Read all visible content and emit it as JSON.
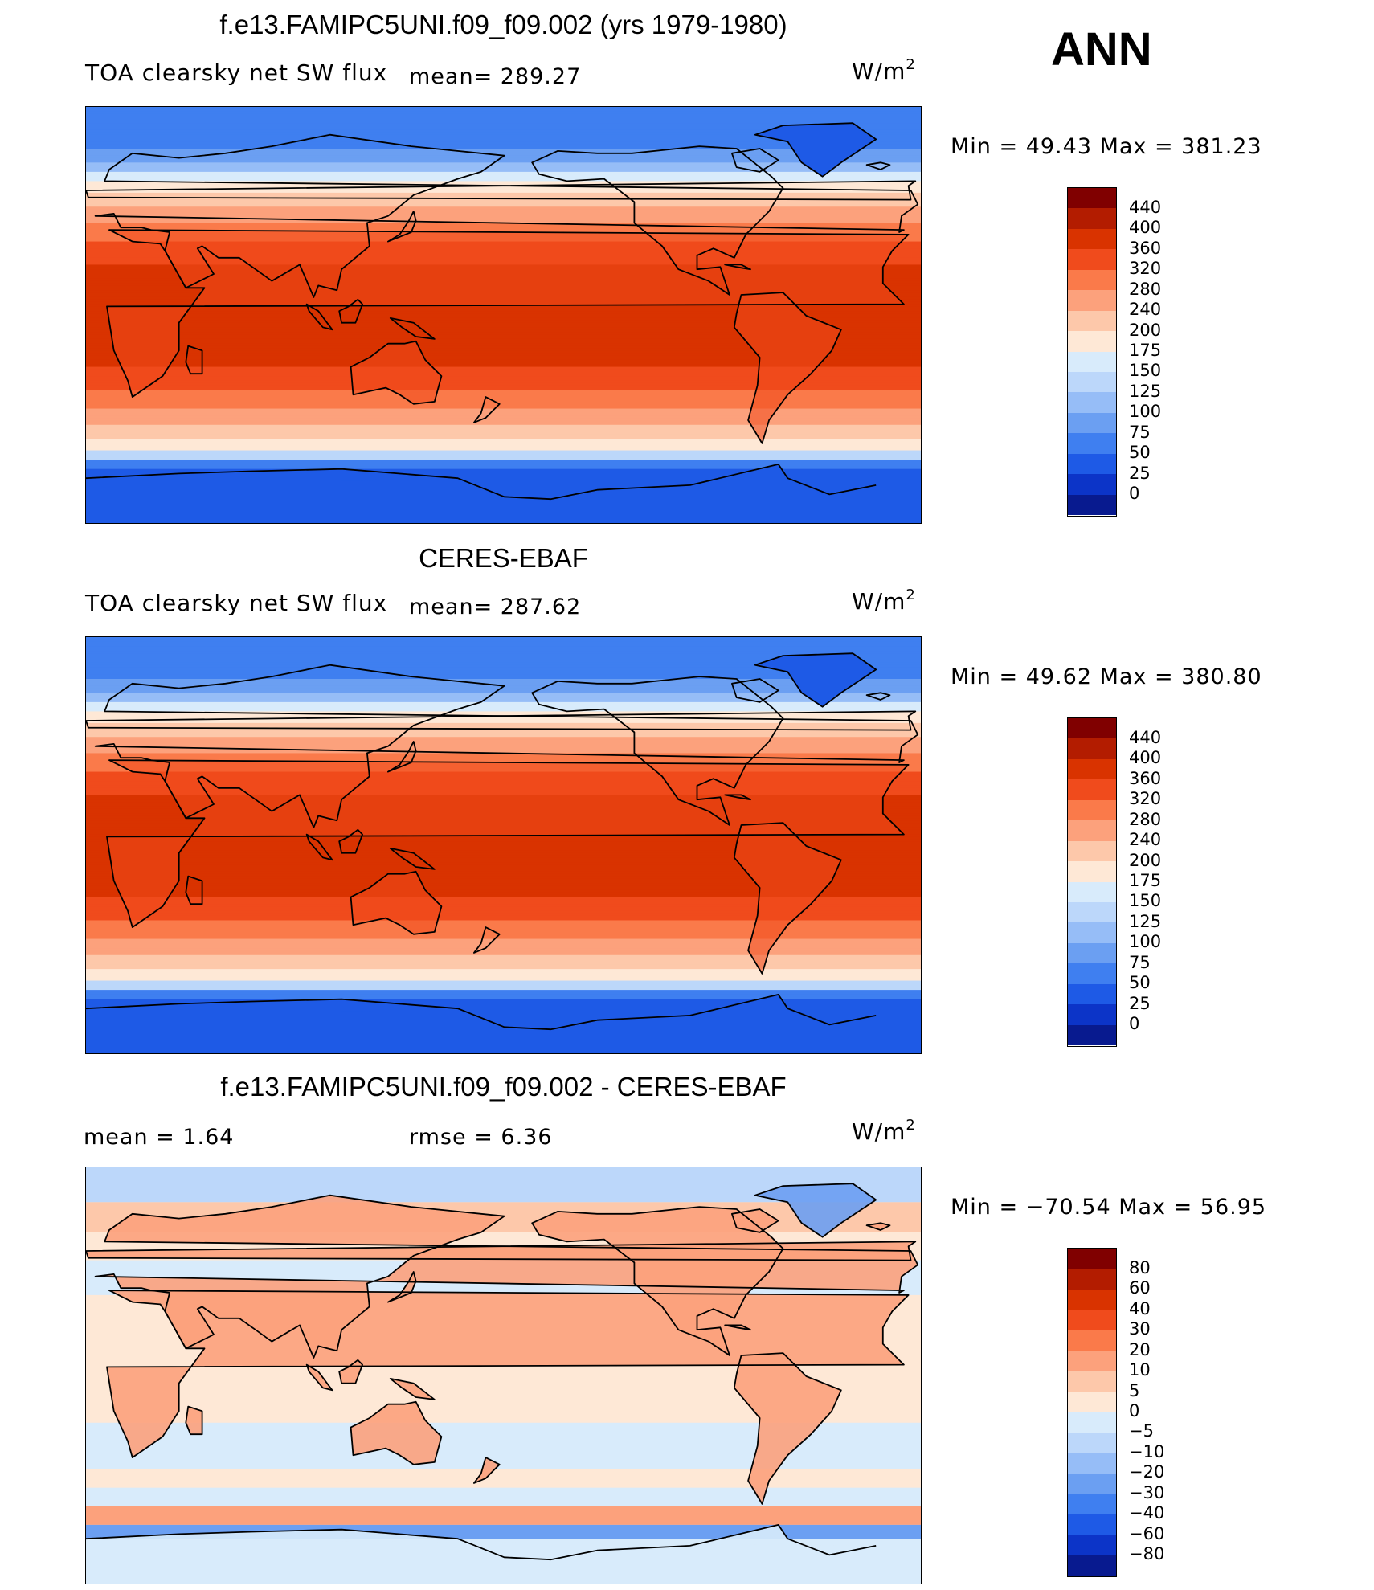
{
  "season": "ANN",
  "panels": [
    {
      "id": "model",
      "title": "f.e13.FAMIPC5UNI.f09_f09.002 (yrs 1979-1980)",
      "variable": "TOA clearsky net SW flux",
      "stat_left": "",
      "stat_mid": "mean= 289.27",
      "units": "W/m",
      "units_sup": "2",
      "minmax": "Min =   49.43 Max = 381.23",
      "min": 49.43,
      "max": 381.23,
      "levels": [
        "440",
        "400",
        "360",
        "320",
        "280",
        "240",
        "200",
        "175",
        "150",
        "125",
        "100",
        "75",
        "50",
        "25",
        "0"
      ],
      "colors": [
        "#800000",
        "#b31c00",
        "#d93300",
        "#f04b1c",
        "#fa7a4a",
        "#fca17c",
        "#fdc8aa",
        "#fee8d6",
        "#d8ebfb",
        "#bcd7fa",
        "#96bdf7",
        "#6b9ff2",
        "#3f7ff0",
        "#1e5ae6",
        "#0c34c8",
        "#081a8f"
      ],
      "field": "full"
    },
    {
      "id": "obs",
      "title": "CERES-EBAF",
      "variable": "TOA clearsky net SW flux",
      "stat_left": "",
      "stat_mid": "mean= 287.62",
      "units": "W/m",
      "units_sup": "2",
      "minmax": "Min =   49.62 Max = 380.80",
      "min": 49.62,
      "max": 380.8,
      "levels": [
        "440",
        "400",
        "360",
        "320",
        "280",
        "240",
        "200",
        "175",
        "150",
        "125",
        "100",
        "75",
        "50",
        "25",
        "0"
      ],
      "colors": [
        "#800000",
        "#b31c00",
        "#d93300",
        "#f04b1c",
        "#fa7a4a",
        "#fca17c",
        "#fdc8aa",
        "#fee8d6",
        "#d8ebfb",
        "#bcd7fa",
        "#96bdf7",
        "#6b9ff2",
        "#3f7ff0",
        "#1e5ae6",
        "#0c34c8",
        "#081a8f"
      ],
      "field": "full"
    },
    {
      "id": "diff",
      "title": "f.e13.FAMIPC5UNI.f09_f09.002 - CERES-EBAF",
      "variable": "",
      "stat_left": "mean =     1.64",
      "stat_mid": "rmse =     6.36",
      "units": "W/m",
      "units_sup": "2",
      "minmax": "Min = −70.54 Max =   56.95",
      "min": -70.54,
      "max": 56.95,
      "levels": [
        "80",
        "60",
        "40",
        "30",
        "20",
        "10",
        "5",
        "0",
        "−5",
        "−10",
        "−20",
        "−30",
        "−40",
        "−60",
        "−80"
      ],
      "colors": [
        "#800000",
        "#b31c00",
        "#d93300",
        "#f04b1c",
        "#fa7a4a",
        "#fca17c",
        "#fdc8aa",
        "#fee8d6",
        "#d8ebfb",
        "#bcd7fa",
        "#96bdf7",
        "#6b9ff2",
        "#3f7ff0",
        "#1e5ae6",
        "#0c34c8",
        "#081a8f"
      ],
      "field": "diff"
    }
  ]
}
